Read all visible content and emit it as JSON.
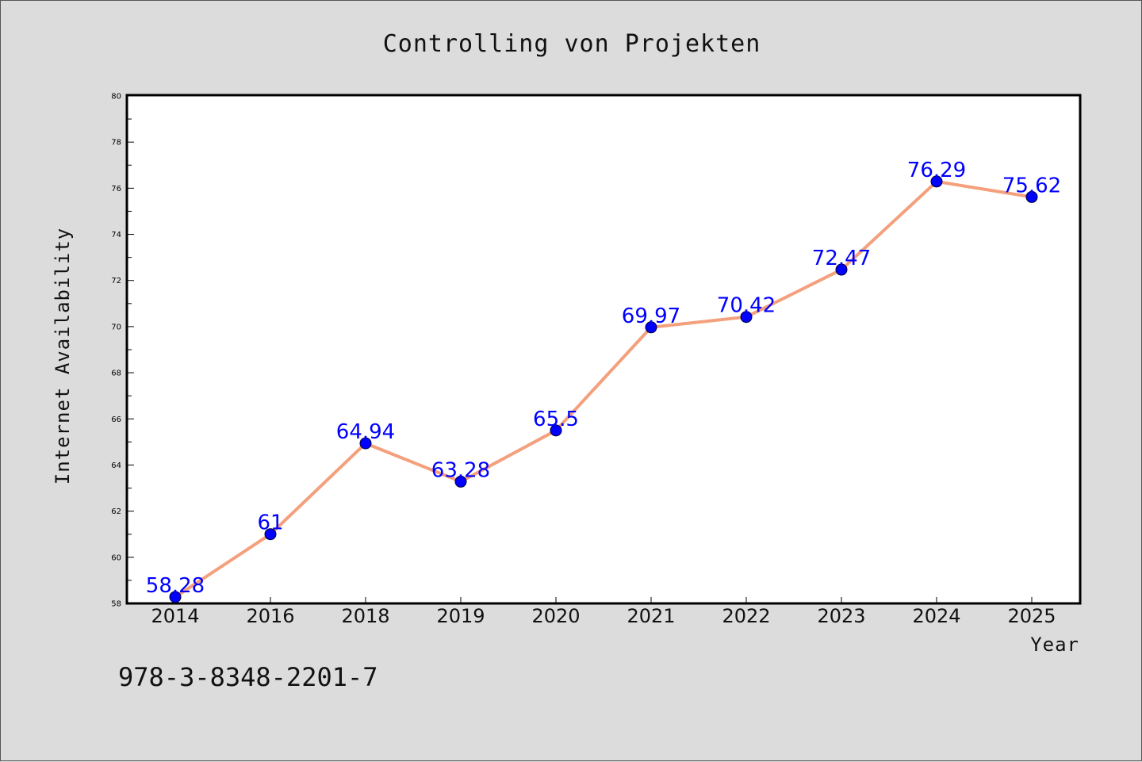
{
  "chart_data": {
    "type": "line",
    "title": "Controlling von Projekten",
    "xlabel": "Year",
    "ylabel": "Internet Availability",
    "categories": [
      "2014",
      "2016",
      "2018",
      "2019",
      "2020",
      "2021",
      "2022",
      "2023",
      "2024",
      "2025"
    ],
    "series": [
      {
        "values": [
          58.28,
          61,
          64.94,
          63.28,
          65.5,
          69.97,
          70.42,
          72.47,
          76.29,
          75.62
        ],
        "data_labels": [
          "58.28",
          "61",
          "64.94",
          "63.28",
          "65.5",
          "69.97",
          "70.42",
          "72.47",
          "76.29",
          "75.62"
        ],
        "line_color": "#f4a07c",
        "marker_color": "#0000ff"
      }
    ],
    "ylim": [
      58,
      80
    ],
    "yticks": [
      "58",
      "60",
      "62",
      "64",
      "66",
      "68",
      "70",
      "72",
      "74",
      "76",
      "78",
      "80"
    ],
    "grid": false,
    "legend": "none"
  },
  "footnote": "978-3-8348-2201-7",
  "colors": {
    "background": "#dcdcdc",
    "plot_area": "#ffffff"
  }
}
